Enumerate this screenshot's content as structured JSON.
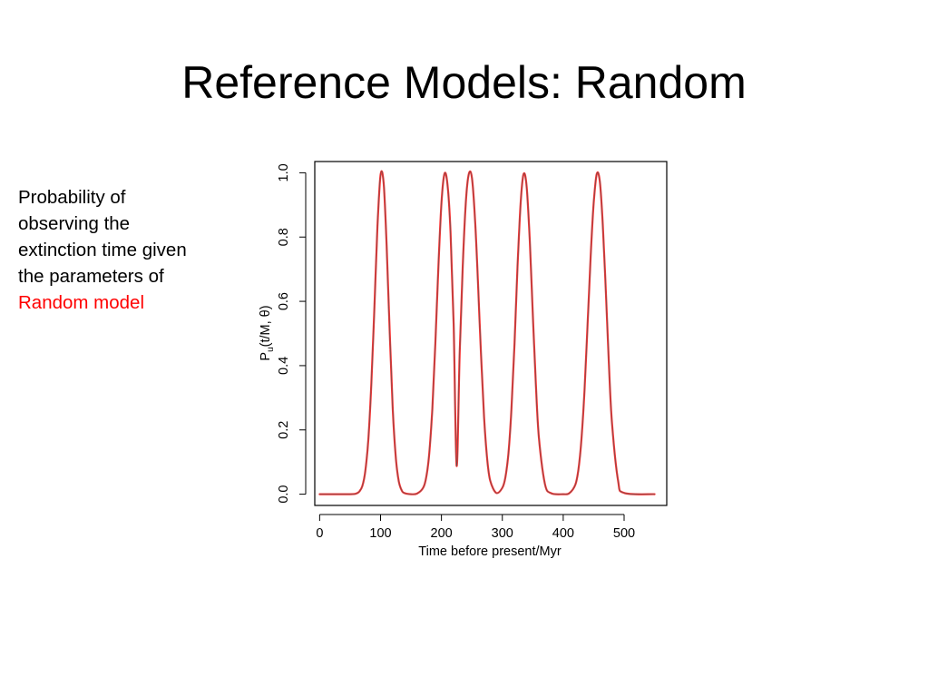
{
  "slide": {
    "title": "Reference Models: Random",
    "caption_lines": [
      "Probability of",
      "observing the",
      "extinction time given",
      "the parameters of"
    ],
    "caption_highlight": "Random model"
  },
  "colors": {
    "curve_outer": "#ff3333",
    "curve_inner": "#555555",
    "highlight": "#ff0000"
  },
  "chart_data": {
    "type": "line",
    "title": "",
    "xlabel": "Time before present/Myr",
    "ylabel": "P_u(t/M, θ)",
    "ylabel_parts": {
      "main": "P",
      "sub": "u",
      "rest": "(t/M, θ)"
    },
    "xlim": [
      -8,
      570
    ],
    "ylim": [
      -0.035,
      1.035
    ],
    "x_ticks": [
      0,
      100,
      200,
      300,
      400,
      500
    ],
    "x_tick_labels": [
      "0",
      "100",
      "200",
      "300",
      "400",
      "500"
    ],
    "y_ticks": [
      0.0,
      0.2,
      0.4,
      0.6,
      0.8,
      1.0
    ],
    "y_tick_labels": [
      "0.0",
      "0.2",
      "0.4",
      "0.6",
      "0.8",
      "1.0"
    ],
    "grid": false,
    "series": [
      {
        "x": [
          0,
          50,
          60,
          65,
          70,
          75,
          80,
          85,
          90,
          95,
          100,
          105,
          110,
          115,
          120,
          125,
          130,
          135,
          140,
          150,
          160,
          170,
          175,
          180,
          185,
          190,
          195,
          200,
          205,
          210,
          215,
          220,
          225,
          230,
          235,
          240,
          245,
          250,
          255,
          260,
          265,
          270,
          275,
          280,
          290,
          300,
          305,
          310,
          315,
          320,
          325,
          330,
          335,
          340,
          345,
          350,
          355,
          360,
          370,
          380,
          400,
          410,
          420,
          425,
          430,
          435,
          440,
          445,
          450,
          455,
          460,
          465,
          470,
          475,
          480,
          490,
          500,
          550
        ],
        "y": [
          0.0,
          0.0,
          0.002,
          0.008,
          0.025,
          0.072,
          0.172,
          0.347,
          0.586,
          0.834,
          0.993,
          0.969,
          0.775,
          0.506,
          0.268,
          0.115,
          0.04,
          0.011,
          0.003,
          0.0,
          0.002,
          0.02,
          0.052,
          0.127,
          0.265,
          0.468,
          0.709,
          0.904,
          0.997,
          0.963,
          0.812,
          0.529,
          0.088,
          0.444,
          0.708,
          0.907,
          0.996,
          0.985,
          0.862,
          0.659,
          0.432,
          0.241,
          0.111,
          0.043,
          0.004,
          0.02,
          0.052,
          0.127,
          0.265,
          0.468,
          0.709,
          0.904,
          0.996,
          0.956,
          0.791,
          0.563,
          0.344,
          0.178,
          0.032,
          0.003,
          0.0,
          0.003,
          0.03,
          0.078,
          0.172,
          0.325,
          0.527,
          0.738,
          0.904,
          0.996,
          0.974,
          0.838,
          0.629,
          0.407,
          0.223,
          0.043,
          0.004,
          0.0
        ]
      }
    ]
  }
}
